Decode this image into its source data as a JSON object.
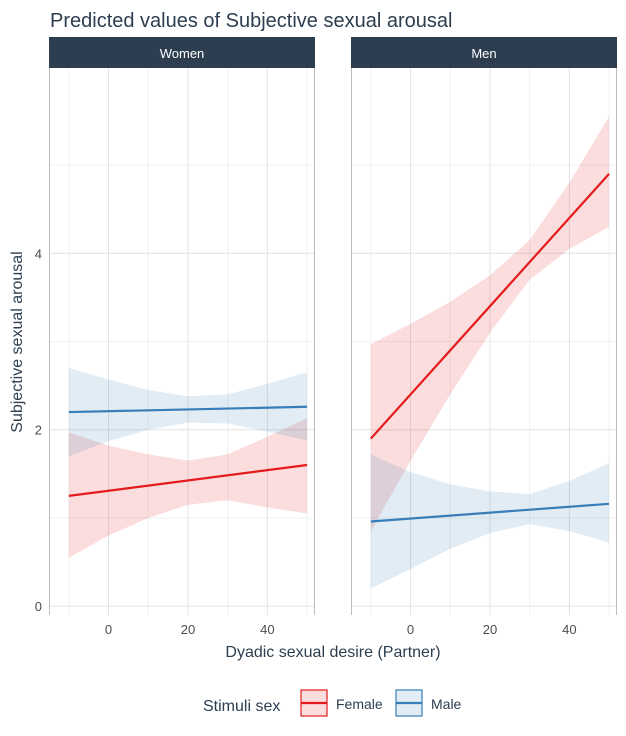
{
  "chart_data": {
    "type": "line",
    "title": "Predicted values of Subjective sexual arousal",
    "xlabel": "Dyadic sexual desire (Partner)",
    "ylabel": "Subjective sexual arousal",
    "xlim": [
      -15,
      52
    ],
    "ylim": [
      -0.1,
      6.1
    ],
    "xticks": [
      0,
      20,
      40
    ],
    "xtick_labels": [
      "0",
      "20",
      "40"
    ],
    "yticks": [
      0,
      2,
      4
    ],
    "ytick_labels": [
      "0",
      "2",
      "4"
    ],
    "grid": true,
    "legend": {
      "title": "Stimuli sex",
      "position": "bottom"
    },
    "colors": {
      "Female": "#e41a1c",
      "Male": "#377eb8",
      "strip": "#2c3e50"
    },
    "panels": [
      {
        "name": "Women",
        "series": [
          {
            "name": "Female",
            "x": [
              -10,
              50
            ],
            "y": [
              1.25,
              1.6
            ],
            "ci_x": [
              -10,
              0,
              10,
              20,
              30,
              40,
              50
            ],
            "ci_lower": [
              0.55,
              0.8,
              1.0,
              1.15,
              1.2,
              1.12,
              1.05
            ],
            "ci_upper": [
              1.97,
              1.82,
              1.72,
              1.65,
              1.72,
              1.92,
              2.13
            ]
          },
          {
            "name": "Male",
            "x": [
              -10,
              50
            ],
            "y": [
              2.2,
              2.26
            ],
            "ci_x": [
              -10,
              0,
              10,
              20,
              30,
              40,
              50
            ],
            "ci_lower": [
              1.7,
              1.87,
              2.0,
              2.08,
              2.07,
              1.98,
              1.88
            ],
            "ci_upper": [
              2.7,
              2.57,
              2.45,
              2.38,
              2.4,
              2.52,
              2.65
            ]
          }
        ]
      },
      {
        "name": "Men",
        "series": [
          {
            "name": "Female",
            "x": [
              -10,
              50
            ],
            "y": [
              1.9,
              4.9
            ],
            "ci_x": [
              -10,
              0,
              10,
              20,
              30,
              40,
              50
            ],
            "ci_lower": [
              0.85,
              1.65,
              2.4,
              3.1,
              3.7,
              4.05,
              4.3
            ],
            "ci_upper": [
              2.97,
              3.2,
              3.45,
              3.75,
              4.15,
              4.8,
              5.55
            ]
          },
          {
            "name": "Male",
            "x": [
              -10,
              50
            ],
            "y": [
              0.96,
              1.16
            ],
            "ci_x": [
              -10,
              0,
              10,
              20,
              30,
              40,
              50
            ],
            "ci_lower": [
              0.2,
              0.42,
              0.65,
              0.83,
              0.93,
              0.85,
              0.72
            ],
            "ci_upper": [
              1.72,
              1.52,
              1.38,
              1.3,
              1.27,
              1.42,
              1.62
            ]
          }
        ]
      }
    ]
  }
}
